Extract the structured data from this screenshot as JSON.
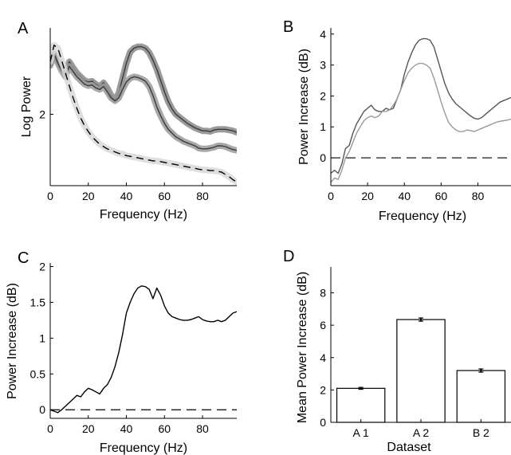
{
  "figure": {
    "panels": [
      "A",
      "B",
      "C",
      "D"
    ]
  },
  "chart_data": [
    {
      "panel": "A",
      "type": "line",
      "xlabel": "Frequency (Hz)",
      "ylabel": "Log Power",
      "xlim": [
        0,
        98
      ],
      "xticks": [
        0,
        20,
        40,
        60,
        80
      ],
      "yticks": [
        2
      ],
      "ylim": [
        1.05,
        3.15
      ],
      "series": [
        {
          "color": "#3a3a3a",
          "band": "#888888",
          "style": "solid",
          "x": [
            0,
            2,
            4,
            6,
            8,
            10,
            12,
            14,
            16,
            18,
            20,
            22,
            24,
            26,
            28,
            30,
            32,
            34,
            36,
            38,
            40,
            42,
            44,
            46,
            48,
            50,
            52,
            54,
            56,
            58,
            60,
            62,
            64,
            66,
            68,
            70,
            72,
            74,
            76,
            78,
            80,
            82,
            84,
            86,
            88,
            90,
            92,
            94,
            96,
            98
          ],
          "y": [
            2.65,
            2.8,
            2.72,
            2.62,
            2.55,
            2.7,
            2.62,
            2.55,
            2.5,
            2.45,
            2.43,
            2.44,
            2.4,
            2.37,
            2.42,
            2.35,
            2.25,
            2.2,
            2.28,
            2.48,
            2.68,
            2.83,
            2.88,
            2.9,
            2.9,
            2.88,
            2.82,
            2.72,
            2.6,
            2.45,
            2.3,
            2.17,
            2.07,
            2.0,
            1.96,
            1.92,
            1.88,
            1.85,
            1.82,
            1.8,
            1.78,
            1.78,
            1.77,
            1.79,
            1.8,
            1.8,
            1.8,
            1.79,
            1.78,
            1.76
          ]
        },
        {
          "color": "#3a3a3a",
          "band": "#9a9a9a",
          "style": "solid",
          "x": [
            0,
            2,
            4,
            6,
            8,
            10,
            12,
            14,
            16,
            18,
            20,
            22,
            24,
            26,
            28,
            30,
            32,
            34,
            36,
            38,
            40,
            42,
            44,
            46,
            48,
            50,
            52,
            54,
            56,
            58,
            60,
            62,
            64,
            66,
            68,
            70,
            72,
            74,
            76,
            78,
            80,
            82,
            84,
            86,
            88,
            90,
            92,
            94,
            96,
            98
          ],
          "y": [
            2.72,
            2.8,
            2.68,
            2.58,
            2.5,
            2.64,
            2.57,
            2.5,
            2.45,
            2.4,
            2.38,
            2.39,
            2.35,
            2.33,
            2.37,
            2.3,
            2.22,
            2.18,
            2.22,
            2.33,
            2.43,
            2.48,
            2.5,
            2.49,
            2.47,
            2.44,
            2.37,
            2.25,
            2.1,
            1.98,
            1.88,
            1.8,
            1.75,
            1.7,
            1.67,
            1.64,
            1.62,
            1.6,
            1.58,
            1.55,
            1.54,
            1.54,
            1.55,
            1.56,
            1.58,
            1.58,
            1.57,
            1.55,
            1.53,
            1.52
          ]
        },
        {
          "color": "#000000",
          "band": "#d8d8d8",
          "style": "dashed",
          "x": [
            0,
            2,
            4,
            6,
            8,
            10,
            12,
            14,
            16,
            18,
            20,
            22,
            24,
            26,
            28,
            30,
            32,
            34,
            36,
            38,
            40,
            42,
            44,
            46,
            48,
            50,
            52,
            54,
            56,
            58,
            60,
            62,
            64,
            66,
            68,
            70,
            72,
            74,
            76,
            78,
            80,
            82,
            84,
            86,
            88,
            90,
            92,
            94,
            96,
            98
          ],
          "y": [
            2.7,
            2.92,
            2.88,
            2.72,
            2.55,
            2.38,
            2.22,
            2.08,
            1.95,
            1.85,
            1.77,
            1.7,
            1.65,
            1.6,
            1.57,
            1.54,
            1.52,
            1.5,
            1.48,
            1.47,
            1.45,
            1.44,
            1.43,
            1.42,
            1.41,
            1.4,
            1.39,
            1.38,
            1.38,
            1.37,
            1.36,
            1.35,
            1.34,
            1.33,
            1.32,
            1.31,
            1.3,
            1.29,
            1.28,
            1.27,
            1.26,
            1.26,
            1.25,
            1.25,
            1.24,
            1.23,
            1.2,
            1.17,
            1.13,
            1.1
          ]
        }
      ]
    },
    {
      "panel": "B",
      "type": "line",
      "xlabel": "Frequency (Hz)",
      "ylabel": "Power Increase (dB)",
      "xlim": [
        0,
        98
      ],
      "ylim": [
        -0.9,
        4.2
      ],
      "xticks": [
        0,
        20,
        40,
        60,
        80
      ],
      "yticks": [
        0,
        1,
        2,
        3,
        4
      ],
      "zero_line": true,
      "series": [
        {
          "color": "#555555",
          "style": "solid",
          "x": [
            0,
            2,
            4,
            6,
            8,
            10,
            12,
            14,
            16,
            18,
            20,
            22,
            24,
            26,
            28,
            30,
            32,
            34,
            36,
            38,
            40,
            42,
            44,
            46,
            48,
            50,
            52,
            54,
            56,
            58,
            60,
            62,
            64,
            66,
            68,
            70,
            72,
            74,
            76,
            78,
            80,
            82,
            84,
            86,
            88,
            90,
            92,
            94,
            96,
            98
          ],
          "y": [
            -0.5,
            -0.4,
            -0.5,
            -0.2,
            0.3,
            0.4,
            0.8,
            1.1,
            1.3,
            1.5,
            1.6,
            1.7,
            1.55,
            1.5,
            1.5,
            1.6,
            1.55,
            1.6,
            1.9,
            2.2,
            2.7,
            3.1,
            3.4,
            3.65,
            3.8,
            3.85,
            3.85,
            3.8,
            3.6,
            3.2,
            2.8,
            2.4,
            2.1,
            1.9,
            1.75,
            1.65,
            1.55,
            1.45,
            1.35,
            1.28,
            1.25,
            1.3,
            1.4,
            1.5,
            1.6,
            1.7,
            1.8,
            1.85,
            1.9,
            1.95
          ]
        },
        {
          "color": "#999999",
          "style": "solid",
          "x": [
            0,
            2,
            4,
            6,
            8,
            10,
            12,
            14,
            16,
            18,
            20,
            22,
            24,
            26,
            28,
            30,
            32,
            34,
            36,
            38,
            40,
            42,
            44,
            46,
            48,
            50,
            52,
            54,
            56,
            58,
            60,
            62,
            64,
            66,
            68,
            70,
            72,
            74,
            76,
            78,
            80,
            82,
            84,
            86,
            88,
            90,
            92,
            94,
            96,
            98
          ],
          "y": [
            -0.8,
            -0.65,
            -0.7,
            -0.4,
            0.0,
            0.2,
            0.5,
            0.8,
            1.0,
            1.2,
            1.3,
            1.35,
            1.3,
            1.35,
            1.5,
            1.5,
            1.55,
            1.7,
            1.9,
            2.2,
            2.5,
            2.75,
            2.9,
            3.0,
            3.05,
            3.05,
            3.0,
            2.9,
            2.6,
            2.2,
            1.8,
            1.45,
            1.15,
            1.0,
            0.9,
            0.85,
            0.85,
            0.9,
            0.88,
            0.85,
            0.9,
            0.95,
            1.0,
            1.05,
            1.1,
            1.15,
            1.18,
            1.2,
            1.22,
            1.25
          ]
        }
      ]
    },
    {
      "panel": "C",
      "type": "line",
      "xlabel": "Frequency (Hz)",
      "ylabel": "Power Increase (dB)",
      "xlim": [
        0,
        98
      ],
      "ylim": [
        -0.12,
        2.05
      ],
      "xticks": [
        0,
        20,
        40,
        60,
        80
      ],
      "yticks": [
        0,
        0.5,
        1,
        1.5,
        2
      ],
      "ytick_labels": [
        "0",
        "0.5",
        "1",
        "1.5",
        "2"
      ],
      "zero_line": true,
      "series": [
        {
          "color": "#000000",
          "style": "solid",
          "x": [
            0,
            2,
            4,
            6,
            8,
            10,
            12,
            14,
            16,
            18,
            20,
            22,
            24,
            26,
            28,
            30,
            32,
            34,
            36,
            38,
            40,
            42,
            44,
            46,
            48,
            50,
            52,
            54,
            56,
            58,
            60,
            62,
            64,
            66,
            68,
            70,
            72,
            74,
            76,
            78,
            80,
            82,
            84,
            86,
            88,
            90,
            92,
            94,
            96,
            98
          ],
          "y": [
            0.0,
            -0.02,
            -0.04,
            0.0,
            0.05,
            0.1,
            0.15,
            0.2,
            0.18,
            0.25,
            0.3,
            0.28,
            0.25,
            0.22,
            0.3,
            0.35,
            0.45,
            0.6,
            0.8,
            1.05,
            1.35,
            1.5,
            1.62,
            1.7,
            1.73,
            1.72,
            1.68,
            1.55,
            1.7,
            1.6,
            1.45,
            1.35,
            1.3,
            1.28,
            1.26,
            1.25,
            1.25,
            1.26,
            1.28,
            1.3,
            1.26,
            1.24,
            1.23,
            1.23,
            1.25,
            1.23,
            1.25,
            1.3,
            1.35,
            1.37
          ]
        }
      ]
    },
    {
      "panel": "D",
      "type": "bar",
      "xlabel": "Dataset",
      "ylabel": "Mean Power Increase (dB)",
      "ylim": [
        0,
        9.6
      ],
      "yticks": [
        0,
        2,
        4,
        6,
        8
      ],
      "categories": [
        "A 1",
        "A 2",
        "B 2"
      ],
      "values": [
        2.1,
        6.35,
        3.2
      ],
      "errors": [
        0.06,
        0.1,
        0.1
      ]
    }
  ]
}
